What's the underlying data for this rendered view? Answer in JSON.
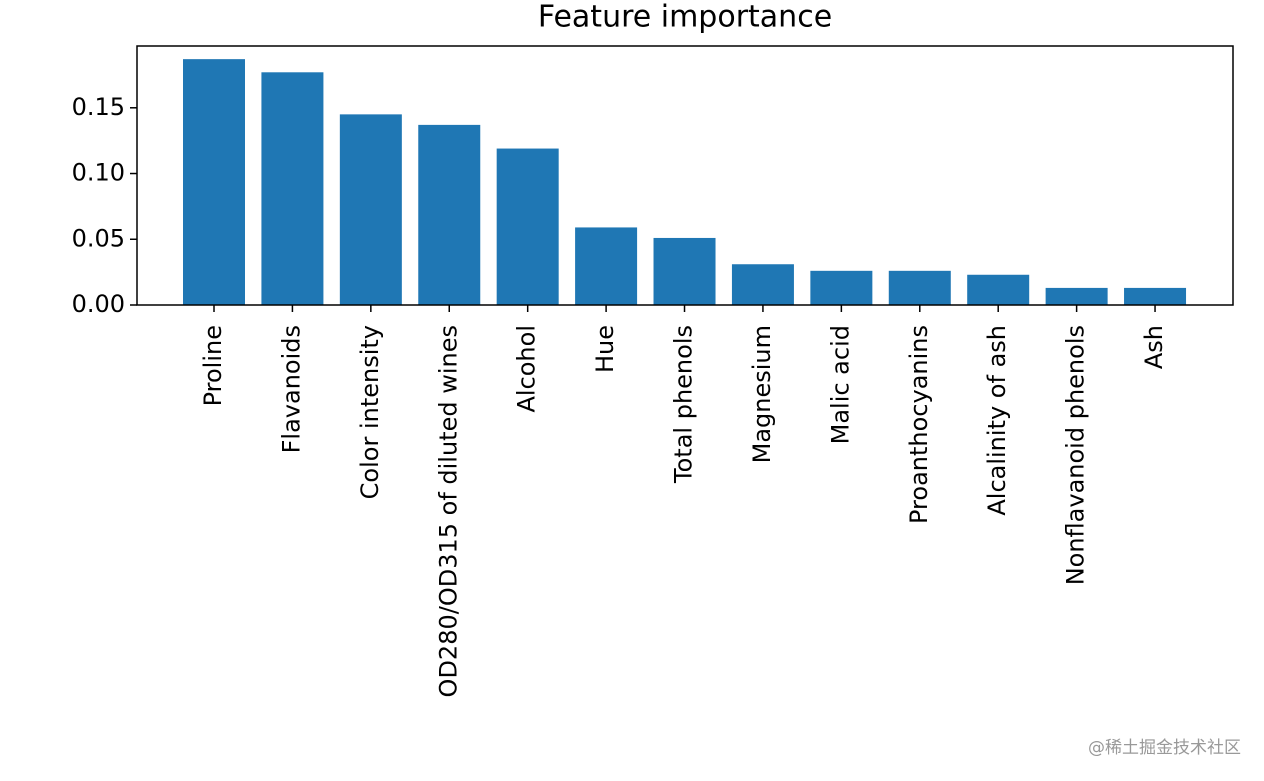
{
  "chart_data": {
    "type": "bar",
    "title": "Feature importance",
    "categories": [
      "Proline",
      "Flavanoids",
      "Color intensity",
      "OD280/OD315 of diluted wines",
      "Alcohol",
      "Hue",
      "Total phenols",
      "Magnesium",
      "Malic acid",
      "Proanthocyanins",
      "Alcalinity of ash",
      "Nonflavanoid phenols",
      "Ash"
    ],
    "values": [
      0.187,
      0.177,
      0.145,
      0.137,
      0.119,
      0.059,
      0.051,
      0.031,
      0.026,
      0.026,
      0.023,
      0.013,
      0.013
    ],
    "color": "#1f77b4",
    "ylim": [
      0,
      0.197
    ],
    "yticks": [
      {
        "value": 0,
        "label": "0.00"
      },
      {
        "value": 0.05,
        "label": "0.05"
      },
      {
        "value": 0.1,
        "label": "0.10"
      },
      {
        "value": 0.15,
        "label": "0.15"
      }
    ],
    "grid": false
  },
  "watermark": "@稀土掘金技术社区"
}
